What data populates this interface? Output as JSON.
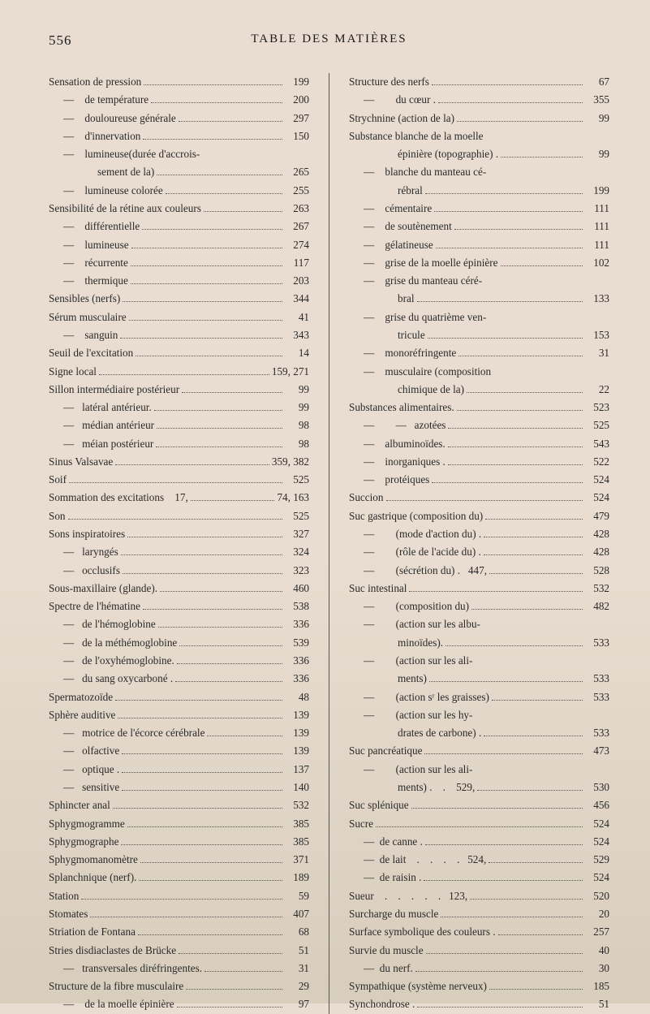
{
  "header": {
    "page_number": "556",
    "title": "TABLE DES MATIÈRES"
  },
  "left_column": [
    {
      "label": "Sensation de pression",
      "indent": "indent-0",
      "page": "199"
    },
    {
      "label": "—    de température",
      "indent": "indent-1",
      "page": "200"
    },
    {
      "label": "—    douloureuse générale",
      "indent": "indent-1",
      "page": "297"
    },
    {
      "label": "—    d'innervation",
      "indent": "indent-1",
      "page": "150"
    },
    {
      "label": "—    lumineuse(durée d'accrois-",
      "indent": "indent-1",
      "page": ""
    },
    {
      "label": "sement de la)",
      "indent": "indent-2b",
      "page": "265"
    },
    {
      "label": "—    lumineuse colorée",
      "indent": "indent-1",
      "page": "255"
    },
    {
      "label": "Sensibilité de la rétine aux couleurs",
      "indent": "indent-0",
      "page": "263"
    },
    {
      "label": "—    différentielle",
      "indent": "indent-1",
      "page": "267"
    },
    {
      "label": "—    lumineuse",
      "indent": "indent-1",
      "page": "274"
    },
    {
      "label": "—    récurrente",
      "indent": "indent-1",
      "page": "117"
    },
    {
      "label": "—    thermique",
      "indent": "indent-1",
      "page": "203"
    },
    {
      "label": "Sensibles (nerfs)",
      "indent": "indent-0",
      "page": "344"
    },
    {
      "label": "Sérum musculaire",
      "indent": "indent-0",
      "page": "41"
    },
    {
      "label": "—    sanguin",
      "indent": "indent-1",
      "page": "343"
    },
    {
      "label": "Seuil de l'excitation",
      "indent": "indent-0",
      "page": "14"
    },
    {
      "label": "Signe local",
      "indent": "indent-0",
      "page": "159, 271"
    },
    {
      "label": "Sillon intermédiaire postérieur",
      "indent": "indent-0",
      "page": "99"
    },
    {
      "label": "—   latéral antérieur.",
      "indent": "indent-1",
      "page": "99"
    },
    {
      "label": "—   médian antérieur",
      "indent": "indent-1",
      "page": "98"
    },
    {
      "label": "—   méian postérieur",
      "indent": "indent-1",
      "page": "98"
    },
    {
      "label": "Sinus Valsavae",
      "indent": "indent-0",
      "page": "359, 382"
    },
    {
      "label": "Soif",
      "indent": "indent-0",
      "page": "525"
    },
    {
      "label": "Sommation des excitations    17,",
      "indent": "indent-0",
      "page": "74, 163"
    },
    {
      "label": "Son",
      "indent": "indent-0",
      "page": "525"
    },
    {
      "label": "Sons inspiratoires",
      "indent": "indent-0",
      "page": "327"
    },
    {
      "label": "—   laryngés",
      "indent": "indent-1",
      "page": "324"
    },
    {
      "label": "—   occlusifs",
      "indent": "indent-1",
      "page": "323"
    },
    {
      "label": "Sous-maxillaire (glande).",
      "indent": "indent-0",
      "page": "460"
    },
    {
      "label": "Spectre de l'hématine",
      "indent": "indent-0",
      "page": "538"
    },
    {
      "label": "—   de l'hémoglobine",
      "indent": "indent-1",
      "page": "336"
    },
    {
      "label": "—   de la méthémoglobine",
      "indent": "indent-1",
      "page": "539"
    },
    {
      "label": "—   de l'oxyhémoglobine.",
      "indent": "indent-1",
      "page": "336"
    },
    {
      "label": "—   du sang oxycarboné .",
      "indent": "indent-1",
      "page": "336"
    },
    {
      "label": "Spermatozoïde",
      "indent": "indent-0",
      "page": "48"
    },
    {
      "label": "Sphère auditive",
      "indent": "indent-0",
      "page": "139"
    },
    {
      "label": "—   motrice de l'écorce cérébrale",
      "indent": "indent-1",
      "page": "139"
    },
    {
      "label": "—   olfactive",
      "indent": "indent-1",
      "page": "139"
    },
    {
      "label": "—   optique .",
      "indent": "indent-1",
      "page": "137"
    },
    {
      "label": "—   sensitive",
      "indent": "indent-1",
      "page": "140"
    },
    {
      "label": "Sphincter anal",
      "indent": "indent-0",
      "page": "532"
    },
    {
      "label": "Sphygmogramme",
      "indent": "indent-0",
      "page": "385"
    },
    {
      "label": "Sphygmographe",
      "indent": "indent-0",
      "page": "385"
    },
    {
      "label": "Sphygmomanomètre",
      "indent": "indent-0",
      "page": "371"
    },
    {
      "label": "Splanchnique (nerf).",
      "indent": "indent-0",
      "page": "189"
    },
    {
      "label": "Station",
      "indent": "indent-0",
      "page": "59"
    },
    {
      "label": "Stomates",
      "indent": "indent-0",
      "page": "407"
    },
    {
      "label": "Striation de Fontana",
      "indent": "indent-0",
      "page": "68"
    },
    {
      "label": "Stries disdiaclastes de Brücke",
      "indent": "indent-0",
      "page": "51"
    },
    {
      "label": "—   transversales diréfringentes.",
      "indent": "indent-1",
      "page": "31"
    },
    {
      "label": "Structure de la fibre musculaire",
      "indent": "indent-0",
      "page": "29"
    },
    {
      "label": "—    de la moelle épinière",
      "indent": "indent-1",
      "page": "97"
    }
  ],
  "right_column": [
    {
      "label": "Structure des nerfs",
      "indent": "indent-0",
      "page": "67"
    },
    {
      "label": "—        du cœur .",
      "indent": "indent-1",
      "page": "355"
    },
    {
      "label": "Strychnine (action de la)",
      "indent": "indent-0",
      "page": "99"
    },
    {
      "label": "Substance blanche de la moelle",
      "indent": "indent-0",
      "page": ""
    },
    {
      "label": "épinière (topographie) .",
      "indent": "indent-2b",
      "page": "99"
    },
    {
      "label": "—    blanche du manteau cé-",
      "indent": "indent-1",
      "page": ""
    },
    {
      "label": "rébral",
      "indent": "indent-2b",
      "page": "199"
    },
    {
      "label": "—    cémentaire",
      "indent": "indent-1",
      "page": "111"
    },
    {
      "label": "—    de soutènement",
      "indent": "indent-1",
      "page": "111"
    },
    {
      "label": "—    gélatineuse",
      "indent": "indent-1",
      "page": "111"
    },
    {
      "label": "—    grise de la moelle épinière",
      "indent": "indent-1",
      "page": "102"
    },
    {
      "label": "—    grise du manteau céré-",
      "indent": "indent-1",
      "page": ""
    },
    {
      "label": "bral",
      "indent": "indent-2b",
      "page": "133"
    },
    {
      "label": "—    grise du quatrième ven-",
      "indent": "indent-1",
      "page": ""
    },
    {
      "label": "tricule",
      "indent": "indent-2b",
      "page": "153"
    },
    {
      "label": "—    monoréfringente",
      "indent": "indent-1",
      "page": "31"
    },
    {
      "label": "—    musculaire (composition",
      "indent": "indent-1",
      "page": ""
    },
    {
      "label": "chimique de la)",
      "indent": "indent-2b",
      "page": "22"
    },
    {
      "label": "Substances alimentaires.",
      "indent": "indent-0",
      "page": "523"
    },
    {
      "label": "—        —   azotées",
      "indent": "indent-1",
      "page": "525"
    },
    {
      "label": "—    albuminoïdes.",
      "indent": "indent-1",
      "page": "543"
    },
    {
      "label": "—    inorganiques .",
      "indent": "indent-1",
      "page": "522"
    },
    {
      "label": "—    protéiques",
      "indent": "indent-1",
      "page": "524"
    },
    {
      "label": "Succion",
      "indent": "indent-0",
      "page": "524"
    },
    {
      "label": "Suc gastrique (composition du)",
      "indent": "indent-0",
      "page": "479"
    },
    {
      "label": "—        (mode d'action du) .",
      "indent": "indent-1",
      "page": "428"
    },
    {
      "label": "—        (rôle de l'acide du) .",
      "indent": "indent-1",
      "page": "428"
    },
    {
      "label": "—        (sécrétion du) .   447,",
      "indent": "indent-1",
      "page": "528"
    },
    {
      "label": "Suc intestinal",
      "indent": "indent-0",
      "page": "532"
    },
    {
      "label": "—        (composition du)",
      "indent": "indent-1",
      "page": "482"
    },
    {
      "label": "—        (action sur les albu-",
      "indent": "indent-1",
      "page": ""
    },
    {
      "label": "minoïdes).",
      "indent": "indent-2b",
      "page": "533"
    },
    {
      "label": "—        (action sur les ali-",
      "indent": "indent-1",
      "page": ""
    },
    {
      "label": "ments)",
      "indent": "indent-2b",
      "page": "533"
    },
    {
      "label": "—        (action sʳ les graisses)",
      "indent": "indent-1",
      "page": "533"
    },
    {
      "label": "—        (action sur les hy-",
      "indent": "indent-1",
      "page": ""
    },
    {
      "label": "drates de carbone) .",
      "indent": "indent-2b",
      "page": "533"
    },
    {
      "label": "Suc pancréatique",
      "indent": "indent-0",
      "page": "473"
    },
    {
      "label": "—        (action sur les ali-",
      "indent": "indent-1",
      "page": ""
    },
    {
      "label": "ments) .    .    529,",
      "indent": "indent-2b",
      "page": "530"
    },
    {
      "label": "Suc splénique",
      "indent": "indent-0",
      "page": "456"
    },
    {
      "label": "Sucre",
      "indent": "indent-0",
      "page": "524"
    },
    {
      "label": "—  de canne .",
      "indent": "indent-1",
      "page": "524"
    },
    {
      "label": "—  de lait    .    .    .    .   524,",
      "indent": "indent-1",
      "page": "529"
    },
    {
      "label": "—  de raisin .",
      "indent": "indent-1",
      "page": "524"
    },
    {
      "label": "Sueur    .    .    .    .    .   123,",
      "indent": "indent-0",
      "page": "520"
    },
    {
      "label": "Surcharge du muscle",
      "indent": "indent-0",
      "page": "20"
    },
    {
      "label": "Surface symbolique des couleurs .",
      "indent": "indent-0",
      "page": "257"
    },
    {
      "label": "Survie du muscle",
      "indent": "indent-0",
      "page": "40"
    },
    {
      "label": "—  du nerf.",
      "indent": "indent-1",
      "page": "30"
    },
    {
      "label": "Sympathique (système nerveux)",
      "indent": "indent-0",
      "page": "185"
    },
    {
      "label": "Synchondrose .",
      "indent": "indent-0",
      "page": "51"
    }
  ]
}
